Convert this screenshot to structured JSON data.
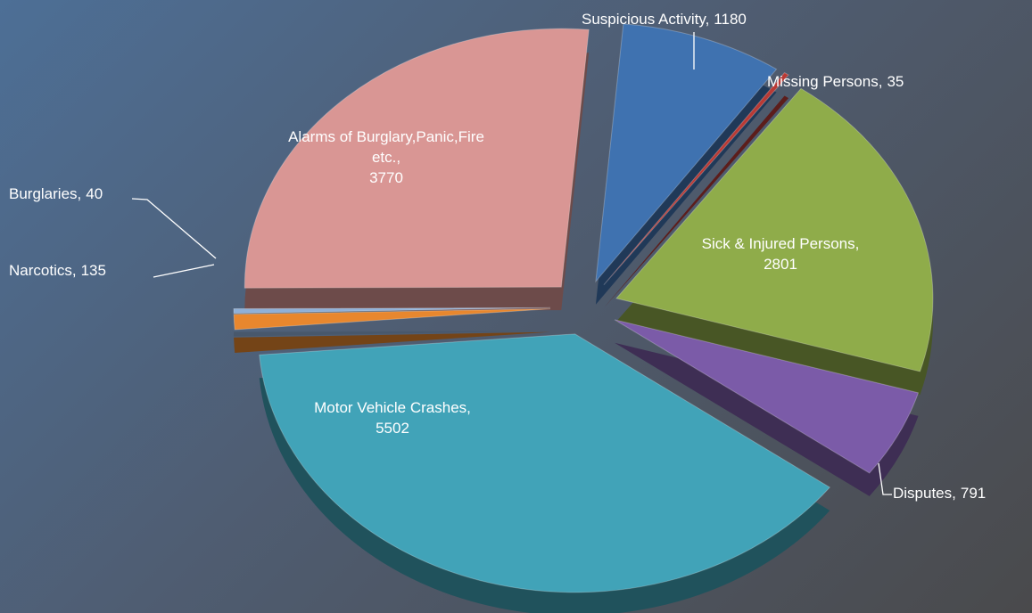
{
  "chart_data": {
    "type": "pie",
    "categories": [
      "Suspicious Activity,",
      "Missing Persons,",
      "Sick & Injured Persons,",
      "Disputes,",
      "Motor Vehicle Crashes,",
      "Narcotics,",
      "Burglaries,",
      "Alarms of Burglary,Panic,Fire etc.,"
    ],
    "values": [
      1180,
      35,
      2801,
      791,
      5502,
      135,
      40,
      3770
    ],
    "colors": [
      "#3f72b0",
      "#b83a35",
      "#8fac4a",
      "#7b5ba8",
      "#41a3b8",
      "#e8872e",
      "#8fb0d8",
      "#d99694"
    ]
  }
}
